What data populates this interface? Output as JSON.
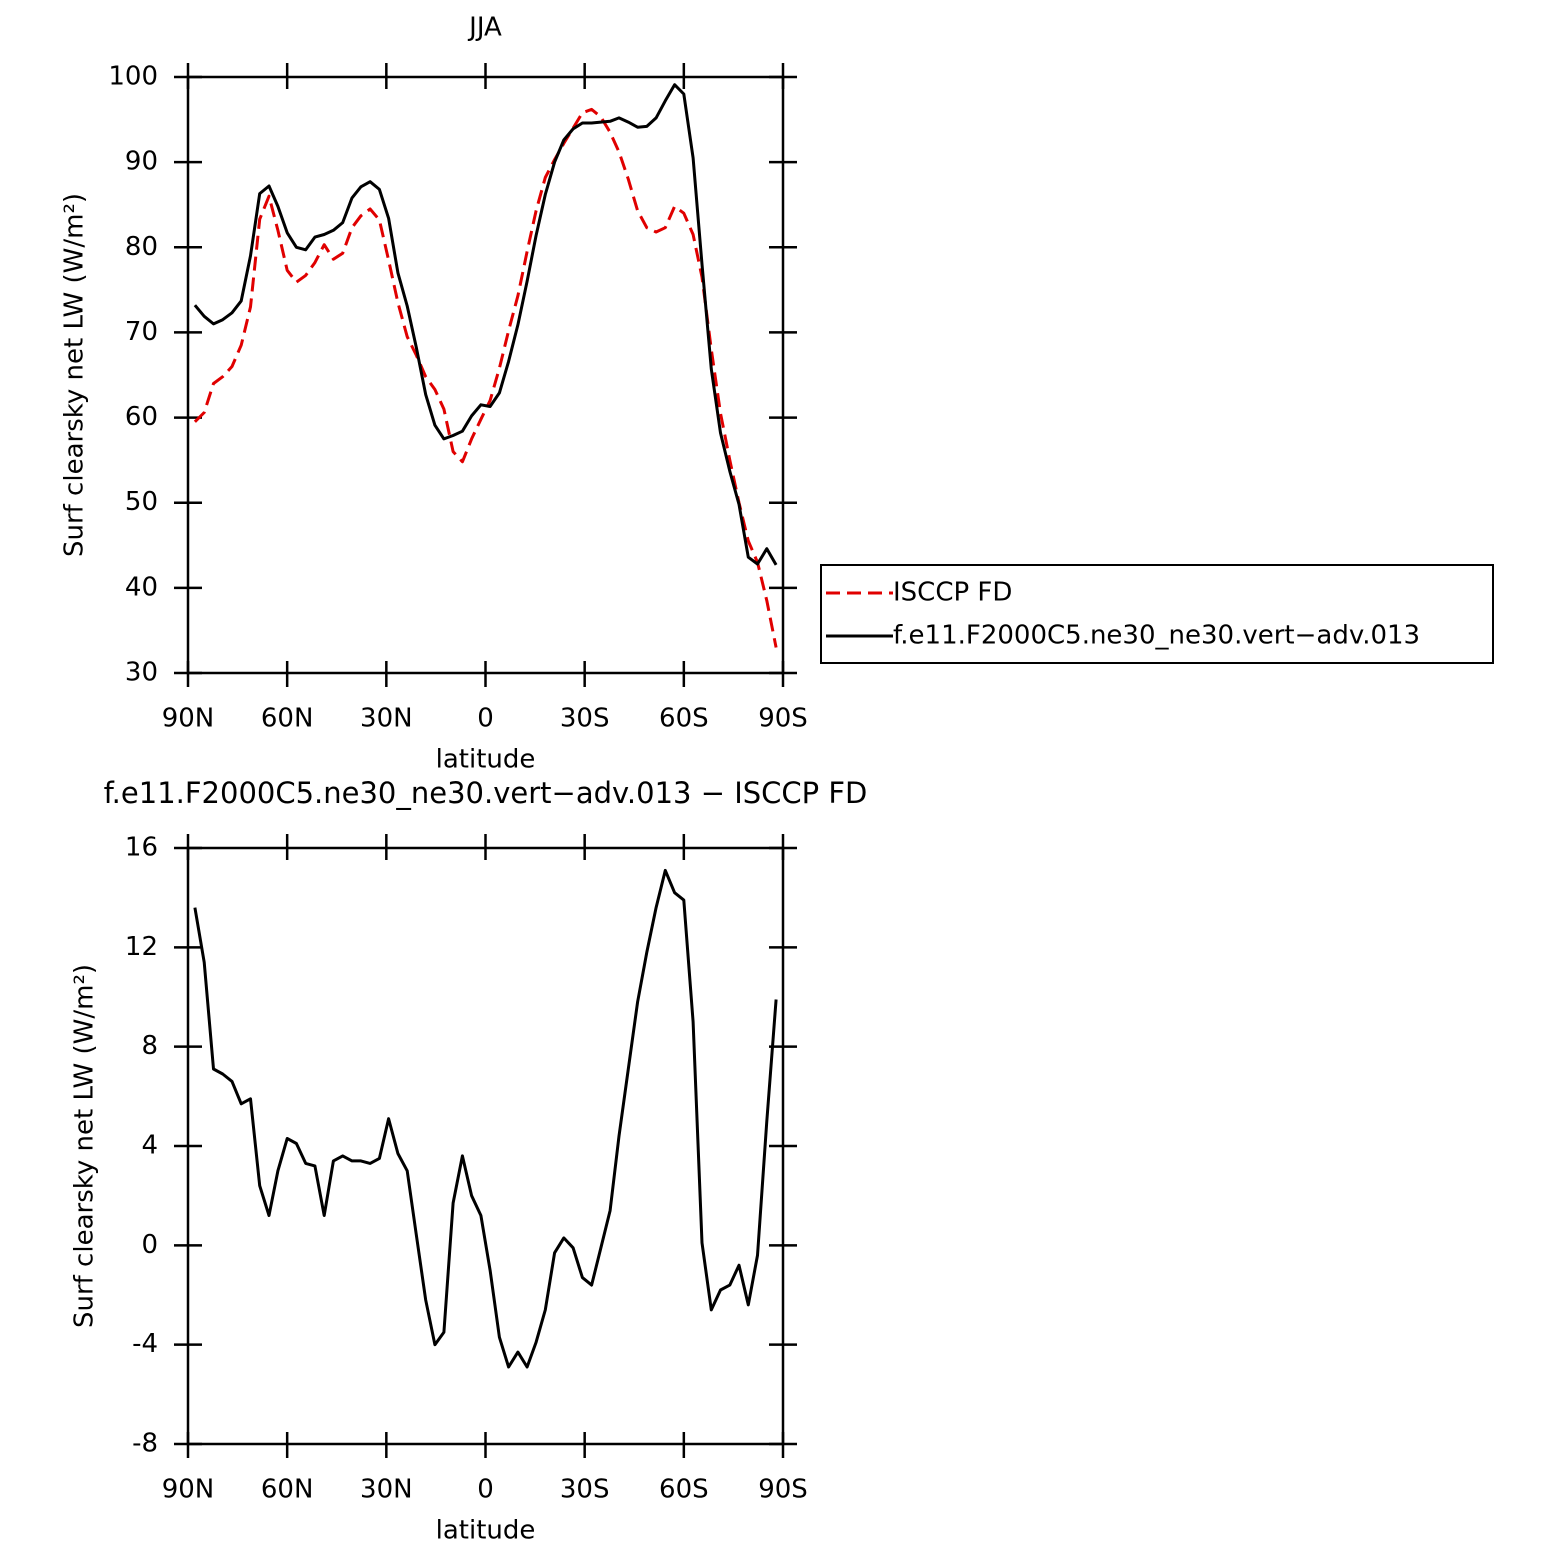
{
  "chart_data": [
    {
      "type": "line",
      "title": "JJA",
      "xlabel": "latitude",
      "ylabel": "Surf clearsky net LW (W/m²)",
      "x": [
        87.9,
        85.1,
        82.3,
        79.5,
        76.7,
        73.9,
        71.1,
        68.3,
        65.5,
        62.8,
        60.0,
        57.2,
        54.4,
        51.6,
        48.8,
        46.0,
        43.2,
        40.4,
        37.7,
        34.9,
        32.1,
        29.3,
        26.5,
        23.7,
        20.9,
        18.1,
        15.3,
        12.6,
        9.8,
        7.0,
        4.2,
        1.4,
        -1.4,
        -4.2,
        -7.0,
        -9.8,
        -12.6,
        -15.3,
        -18.1,
        -20.9,
        -23.7,
        -26.5,
        -29.3,
        -32.1,
        -34.9,
        -37.7,
        -40.4,
        -43.2,
        -46.0,
        -48.8,
        -51.6,
        -54.4,
        -57.2,
        -60.0,
        -62.8,
        -65.5,
        -68.3,
        -71.1,
        -73.9,
        -76.7,
        -79.5,
        -82.3,
        -85.1,
        -87.9
      ],
      "series": [
        {
          "name": "ISCCP FD",
          "color": "#e00000",
          "style": "dashed",
          "values": [
            59.5,
            60.6,
            64.0,
            64.8,
            66.0,
            68.5,
            73.0,
            83.3,
            86.0,
            82.0,
            77.3,
            75.9,
            76.7,
            78.2,
            80.3,
            78.6,
            79.3,
            82.3,
            83.7,
            84.5,
            83.2,
            78.5,
            73.5,
            69.5,
            67.3,
            64.8,
            63.3,
            61.0,
            56.0,
            54.8,
            57.5,
            59.8,
            62.0,
            65.8,
            70.2,
            74.3,
            79.5,
            84.3,
            88.2,
            90.3,
            92.2,
            94.0,
            95.8,
            96.2,
            95.3,
            93.5,
            91.2,
            88.0,
            84.3,
            82.3,
            81.8,
            82.3,
            84.8,
            84.0,
            81.5,
            76.5,
            68.0,
            60.5,
            55.0,
            50.0,
            45.5,
            43.0,
            38.5,
            33.0
          ]
        },
        {
          "name": "f.e11.F2000C5.ne30_ne30.vert−adv.013",
          "color": "#000000",
          "style": "solid",
          "values": [
            73.2,
            71.9,
            71.0,
            71.5,
            72.3,
            73.7,
            79.0,
            86.3,
            87.2,
            84.8,
            81.7,
            80.0,
            79.7,
            81.2,
            81.5,
            82.0,
            82.9,
            85.8,
            87.1,
            87.7,
            86.8,
            83.4,
            77.0,
            73.1,
            68.2,
            62.7,
            59.1,
            57.5,
            57.9,
            58.4,
            60.2,
            61.5,
            61.3,
            62.9,
            66.6,
            70.9,
            76.0,
            81.4,
            86.2,
            90.0,
            92.6,
            93.9,
            94.6,
            94.6,
            94.7,
            94.8,
            95.2,
            94.7,
            94.1,
            94.2,
            95.2,
            97.2,
            99.1,
            98.0,
            90.5,
            78.0,
            65.7,
            58.2,
            53.7,
            49.8,
            43.6,
            42.8,
            44.6,
            42.7
          ]
        }
      ],
      "xlim": [
        90,
        -90
      ],
      "xticks": [
        {
          "value": 90,
          "label": "90N"
        },
        {
          "value": 60,
          "label": "60N"
        },
        {
          "value": 30,
          "label": "30N"
        },
        0,
        {
          "value": -30,
          "label": "30S"
        },
        {
          "value": -60,
          "label": "60S"
        },
        {
          "value": -90,
          "label": "90S"
        }
      ],
      "ylim": [
        30,
        100
      ],
      "yticks": [
        30,
        40,
        50,
        60,
        70,
        80,
        90,
        100
      ],
      "legend": "right"
    },
    {
      "type": "line",
      "title": "f.e11.F2000C5.ne30_ne30.vert−adv.013 − ISCCP FD",
      "xlabel": "latitude",
      "ylabel": "Surf clearsky net LW (W/m²)",
      "x": [
        87.9,
        85.1,
        82.3,
        79.5,
        76.7,
        73.9,
        71.1,
        68.3,
        65.5,
        62.8,
        60.0,
        57.2,
        54.4,
        51.6,
        48.8,
        46.0,
        43.2,
        40.4,
        37.7,
        34.9,
        32.1,
        29.3,
        26.5,
        23.7,
        20.9,
        18.1,
        15.3,
        12.6,
        9.8,
        7.0,
        4.2,
        1.4,
        -1.4,
        -4.2,
        -7.0,
        -9.8,
        -12.6,
        -15.3,
        -18.1,
        -20.9,
        -23.7,
        -26.5,
        -29.3,
        -32.1,
        -34.9,
        -37.7,
        -40.4,
        -43.2,
        -46.0,
        -48.8,
        -51.6,
        -54.4,
        -57.2,
        -60.0,
        -62.8,
        -65.5,
        -68.3,
        -71.1,
        -73.9,
        -76.7,
        -79.5,
        -82.3,
        -85.1,
        -87.9
      ],
      "color": "#000000",
      "values": [
        13.6,
        11.4,
        7.1,
        6.9,
        6.6,
        5.7,
        5.9,
        2.4,
        1.2,
        3.0,
        4.3,
        4.1,
        3.3,
        3.2,
        1.2,
        3.4,
        3.6,
        3.4,
        3.4,
        3.3,
        3.5,
        5.1,
        3.7,
        3.0,
        0.4,
        -2.2,
        -4.0,
        -3.5,
        1.7,
        3.6,
        2.0,
        1.2,
        -1.0,
        -3.7,
        -4.9,
        -4.3,
        -4.9,
        -3.9,
        -2.6,
        -0.3,
        0.3,
        -0.1,
        -1.3,
        -1.6,
        -0.1,
        1.4,
        4.4,
        7.1,
        9.8,
        11.8,
        13.6,
        15.1,
        14.2,
        13.9,
        9.0,
        0.1,
        -2.6,
        -1.8,
        -1.6,
        -0.8,
        -2.4,
        -0.4,
        5.0,
        9.9
      ],
      "xlim": [
        90,
        -90
      ],
      "xticks": [
        {
          "value": 90,
          "label": "90N"
        },
        {
          "value": 60,
          "label": "60N"
        },
        {
          "value": 30,
          "label": "30N"
        },
        0,
        {
          "value": -30,
          "label": "30S"
        },
        {
          "value": -60,
          "label": "60S"
        },
        {
          "value": -90,
          "label": "90S"
        }
      ],
      "ylim": [
        -8,
        16
      ],
      "yticks": [
        -8,
        -4,
        0,
        4,
        8,
        12,
        16
      ]
    }
  ]
}
